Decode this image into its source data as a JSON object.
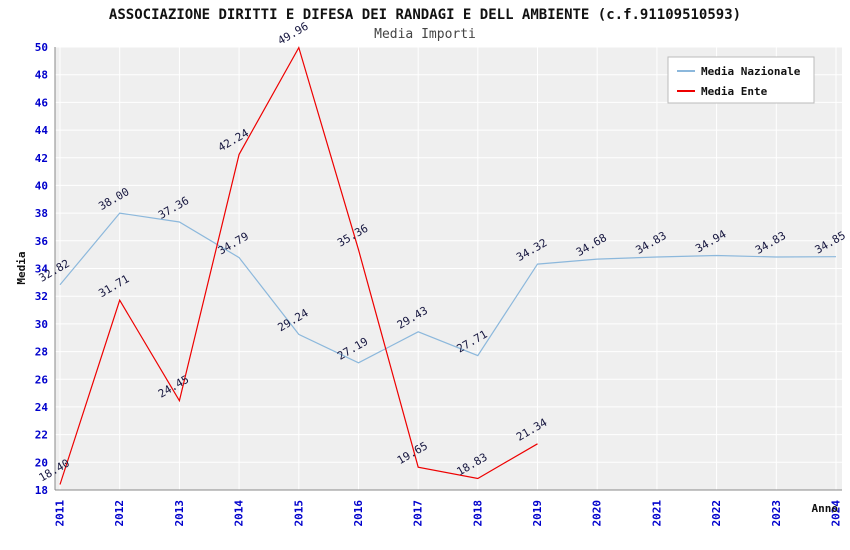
{
  "header": {
    "title": "ASSOCIAZIONE DIRITTI E DIFESA DEI RANDAGI E DELL AMBIENTE (c.f.91109510593)",
    "subtitle": "Media Importi"
  },
  "chart_data": {
    "type": "line",
    "x": [
      "2011",
      "2012",
      "2013",
      "2014",
      "2015",
      "2016",
      "2017",
      "2018",
      "2019",
      "2020",
      "2021",
      "2022",
      "2023",
      "2024"
    ],
    "xlabel": "Anno",
    "ylabel": "Media",
    "ylim": [
      18,
      50
    ],
    "ytick_step": 2,
    "grid": true,
    "legend_position": "top-right",
    "colors": {
      "plot_bg": "#efefef",
      "grid": "#ffffff",
      "axis": "#888888",
      "tick_label": "#0000cc",
      "value_label": "#16163f",
      "legend_border": "#bbbbbb"
    },
    "series": [
      {
        "name": "Media Nazionale",
        "color": "#8cb8dc",
        "values": [
          32.82,
          38.0,
          37.36,
          34.79,
          29.24,
          27.19,
          29.43,
          27.71,
          34.32,
          34.68,
          34.83,
          34.94,
          34.83,
          34.85
        ]
      },
      {
        "name": "Media Ente",
        "color": "#ee0000",
        "values": [
          18.4,
          31.71,
          24.45,
          42.24,
          49.96,
          35.36,
          19.65,
          18.83,
          21.34,
          null,
          null,
          null,
          null,
          null
        ]
      }
    ]
  }
}
